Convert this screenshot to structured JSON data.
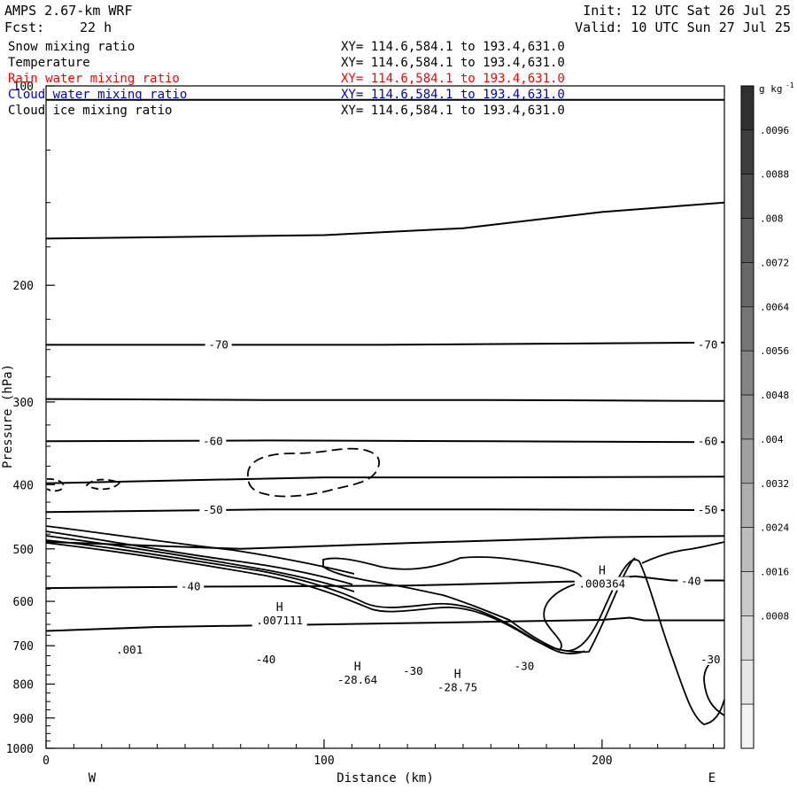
{
  "header": {
    "model": "AMPS 2.67-km WRF",
    "fcst_label": "Fcst:",
    "fcst_value": "22 h",
    "init": "Init: 12 UTC Sat 26 Jul 25",
    "valid": "Valid: 10 UTC Sun 27 Jul 25"
  },
  "layers": [
    {
      "name": "Snow mixing ratio",
      "xy": "XY= 114.6,584.1 to 193.4,631.0",
      "color": "#000000"
    },
    {
      "name": "Temperature",
      "xy": "XY= 114.6,584.1 to 193.4,631.0",
      "color": "#000000"
    },
    {
      "name": "Rain water mixing ratio",
      "xy": "XY= 114.6,584.1 to 193.4,631.0",
      "color": "#ff0000"
    },
    {
      "name": "Cloud water mixing ratio",
      "xy": "XY= 114.6,584.1 to 193.4,631.0",
      "color": "#0000cc"
    },
    {
      "name": "Cloud ice mixing ratio",
      "xy": "XY= 114.6,584.1 to 193.4,631.0",
      "color": "#000000"
    }
  ],
  "chart_data": {
    "type": "contour",
    "xlabel": "Distance (km)",
    "ylabel": "Pressure (hPa)",
    "xlim": [
      0,
      244
    ],
    "ylim": [
      100,
      1000
    ],
    "y_scale": "log",
    "x_ticks": [
      0,
      100,
      200
    ],
    "y_ticks": [
      100,
      200,
      300,
      400,
      500,
      600,
      700,
      800,
      900,
      1000
    ],
    "west_label": "W",
    "east_label": "E",
    "colorbar": {
      "unit": "g kg",
      "unit_sup": "-1",
      "ticks": [
        ".0096",
        ".0088",
        ".008",
        ".0072",
        ".0064",
        ".0056",
        ".0048",
        ".004",
        ".0032",
        ".0024",
        ".0016",
        ".0008"
      ],
      "colors": [
        "#303030",
        "#3e3e3e",
        "#4c4c4c",
        "#5a5a5a",
        "#686868",
        "#767676",
        "#848484",
        "#929292",
        "#a0a0a0",
        "#aeaeae",
        "#bcbcbc",
        "#cacaca",
        "#d8d8d8",
        "#e6e6e6",
        "#f4f4f4"
      ]
    },
    "isotherms": [
      {
        "points": [
          [
            0,
            105
          ],
          [
            50,
            105
          ],
          [
            100,
            105
          ],
          [
            150,
            105
          ],
          [
            200,
            105
          ],
          [
            244,
            105
          ]
        ]
      },
      {
        "points": [
          [
            0,
            170
          ],
          [
            50,
            169
          ],
          [
            100,
            168
          ],
          [
            150,
            164
          ],
          [
            200,
            155
          ],
          [
            244,
            150
          ]
        ]
      },
      {
        "points": [
          [
            0,
            246
          ],
          [
            60,
            246
          ],
          [
            120,
            246
          ],
          [
            180,
            245
          ],
          [
            244,
            244
          ]
        ],
        "label": "-70"
      },
      {
        "points": [
          [
            0,
            297
          ],
          [
            80,
            298
          ],
          [
            160,
            298
          ],
          [
            244,
            299
          ]
        ]
      },
      {
        "points": [
          [
            0,
            344
          ],
          [
            80,
            343
          ],
          [
            160,
            344
          ],
          [
            244,
            345
          ]
        ],
        "label": "-60"
      },
      {
        "points": [
          [
            0,
            398
          ],
          [
            100,
            390
          ],
          [
            160,
            390
          ],
          [
            244,
            389
          ]
        ]
      },
      {
        "points": [
          [
            0,
            440
          ],
          [
            80,
            436
          ],
          [
            160,
            436
          ],
          [
            244,
            437
          ]
        ],
        "label": "-50"
      },
      {
        "points": [
          [
            0,
            488
          ],
          [
            70,
            500
          ],
          [
            130,
            490
          ],
          [
            200,
            480
          ],
          [
            244,
            478
          ]
        ]
      },
      {
        "points": [
          [
            0,
            573
          ],
          [
            60,
            570
          ],
          [
            130,
            568
          ],
          [
            190,
            560
          ],
          [
            212,
            550
          ],
          [
            225,
            558
          ],
          [
            244,
            558
          ]
        ],
        "label": "-40"
      },
      {
        "points": [
          [
            0,
            665
          ],
          [
            40,
            656
          ],
          [
            100,
            650
          ],
          [
            150,
            645
          ],
          [
            200,
            640
          ],
          [
            210,
            635
          ],
          [
            215,
            641
          ],
          [
            244,
            641
          ]
        ]
      }
    ],
    "temperature_labels": [
      {
        "x": 62,
        "p": 246,
        "text": "-70"
      },
      {
        "x": 238,
        "p": 246,
        "text": "-70"
      },
      {
        "x": 60,
        "p": 344,
        "text": "-60"
      },
      {
        "x": 238,
        "p": 344,
        "text": "-60"
      },
      {
        "x": 60,
        "p": 437,
        "text": "-50"
      },
      {
        "x": 238,
        "p": 437,
        "text": "-50"
      },
      {
        "x": 52,
        "p": 570,
        "text": "-40"
      },
      {
        "x": 232,
        "p": 560,
        "text": "-40"
      },
      {
        "x": 79,
        "p": 735,
        "text": "-40"
      },
      {
        "x": 132,
        "p": 765,
        "text": "-30"
      },
      {
        "x": 172,
        "p": 752,
        "text": "-30"
      },
      {
        "x": 239,
        "p": 735,
        "text": "-30"
      },
      {
        "x": 30,
        "p": 711,
        "text": ".001"
      }
    ],
    "extrema": [
      {
        "x": 84,
        "p": 628,
        "mark": "H",
        "value": ".007111"
      },
      {
        "x": 200,
        "p": 553,
        "mark": "H",
        "value": ".000364"
      },
      {
        "x": 112,
        "p": 772,
        "mark": "H",
        "value": "-28.64"
      },
      {
        "x": 148,
        "p": 793,
        "mark": "H",
        "value": "-28.75"
      }
    ]
  }
}
